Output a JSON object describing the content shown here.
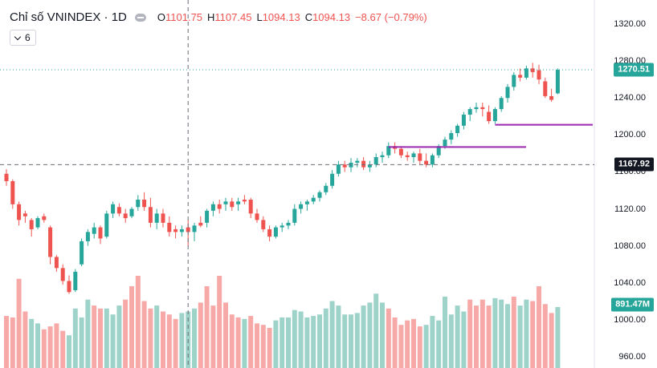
{
  "legend": {
    "title": "Chỉ số VNINDEX · 1D",
    "o_label": "O",
    "o_value": "1101.75",
    "h_label": "H",
    "h_value": "1107.45",
    "l_label": "L",
    "l_value": "1094.13",
    "c_label": "C",
    "c_value": "1094.13",
    "change": "−8.67 (−0.79%)",
    "sub_button": "6"
  },
  "tags": {
    "price": "1270.51",
    "crosshair": "1167.92",
    "volume": "891.47M"
  },
  "colors": {
    "up": "#26a69a",
    "down": "#ef5350",
    "vol_up": "#9ed3ca",
    "vol_down": "#f7a9a7",
    "level_line": "#9c27b0",
    "tag_dark": "#131722"
  },
  "chart_data": {
    "type": "candlestick",
    "title": "Chỉ số VNINDEX · 1D",
    "y_ticks": [
      "1320.00",
      "1280.00",
      "1240.00",
      "1200.00",
      "1160.00",
      "1120.00",
      "1080.00",
      "1040.00",
      "1000.00",
      "960.00"
    ],
    "ylim": [
      960,
      1320
    ],
    "candles": [
      [
        1158,
        1163,
        1145,
        1150
      ],
      [
        1150,
        1152,
        1120,
        1125
      ],
      [
        1125,
        1128,
        1102,
        1108
      ],
      [
        1115,
        1118,
        1105,
        1112
      ],
      [
        1108,
        1110,
        1090,
        1098
      ],
      [
        1100,
        1112,
        1098,
        1110
      ],
      [
        1112,
        1115,
        1105,
        1108
      ],
      [
        1100,
        1102,
        1060,
        1068
      ],
      [
        1068,
        1070,
        1052,
        1056
      ],
      [
        1056,
        1060,
        1038,
        1042
      ],
      [
        1042,
        1048,
        1028,
        1030
      ],
      [
        1032,
        1055,
        1030,
        1052
      ],
      [
        1060,
        1088,
        1058,
        1085
      ],
      [
        1085,
        1098,
        1080,
        1095
      ],
      [
        1093,
        1105,
        1088,
        1100
      ],
      [
        1100,
        1102,
        1082,
        1088
      ],
      [
        1090,
        1118,
        1088,
        1115
      ],
      [
        1115,
        1128,
        1110,
        1125
      ],
      [
        1122,
        1126,
        1112,
        1115
      ],
      [
        1115,
        1120,
        1105,
        1110
      ],
      [
        1112,
        1122,
        1110,
        1120
      ],
      [
        1122,
        1135,
        1118,
        1130
      ],
      [
        1130,
        1138,
        1118,
        1122
      ],
      [
        1122,
        1132,
        1100,
        1105
      ],
      [
        1105,
        1120,
        1098,
        1115
      ],
      [
        1115,
        1120,
        1100,
        1105
      ],
      [
        1105,
        1112,
        1090,
        1095
      ],
      [
        1098,
        1102,
        1088,
        1095
      ],
      [
        1095,
        1102,
        1090,
        1098
      ],
      [
        1100,
        1108,
        1080,
        1095
      ],
      [
        1095,
        1105,
        1085,
        1102
      ],
      [
        1105,
        1112,
        1100,
        1102
      ],
      [
        1105,
        1120,
        1100,
        1118
      ],
      [
        1118,
        1128,
        1112,
        1125
      ],
      [
        1125,
        1130,
        1115,
        1120
      ],
      [
        1125,
        1132,
        1118,
        1128
      ],
      [
        1128,
        1132,
        1118,
        1122
      ],
      [
        1125,
        1132,
        1118,
        1128
      ],
      [
        1130,
        1135,
        1125,
        1128
      ],
      [
        1130,
        1132,
        1110,
        1115
      ],
      [
        1115,
        1120,
        1105,
        1108
      ],
      [
        1108,
        1112,
        1095,
        1098
      ],
      [
        1098,
        1102,
        1085,
        1090
      ],
      [
        1090,
        1102,
        1088,
        1100
      ],
      [
        1100,
        1105,
        1095,
        1102
      ],
      [
        1102,
        1108,
        1098,
        1105
      ],
      [
        1105,
        1125,
        1102,
        1120
      ],
      [
        1120,
        1128,
        1115,
        1125
      ],
      [
        1125,
        1130,
        1118,
        1128
      ],
      [
        1128,
        1135,
        1125,
        1132
      ],
      [
        1132,
        1140,
        1128,
        1138
      ],
      [
        1138,
        1148,
        1135,
        1145
      ],
      [
        1145,
        1162,
        1142,
        1158
      ],
      [
        1158,
        1172,
        1155,
        1168
      ],
      [
        1168,
        1172,
        1160,
        1165
      ],
      [
        1165,
        1175,
        1160,
        1170
      ],
      [
        1170,
        1175,
        1165,
        1172
      ],
      [
        1172,
        1176,
        1162,
        1165
      ],
      [
        1165,
        1172,
        1160,
        1168
      ],
      [
        1168,
        1180,
        1165,
        1176
      ],
      [
        1176,
        1182,
        1170,
        1178
      ],
      [
        1178,
        1192,
        1175,
        1188
      ],
      [
        1188,
        1192,
        1180,
        1185
      ],
      [
        1185,
        1188,
        1175,
        1178
      ],
      [
        1178,
        1182,
        1172,
        1176
      ],
      [
        1176,
        1182,
        1170,
        1180
      ],
      [
        1180,
        1185,
        1168,
        1172
      ],
      [
        1172,
        1180,
        1165,
        1168
      ],
      [
        1168,
        1180,
        1165,
        1178
      ],
      [
        1178,
        1190,
        1175,
        1188
      ],
      [
        1188,
        1198,
        1185,
        1195
      ],
      [
        1195,
        1205,
        1190,
        1202
      ],
      [
        1202,
        1212,
        1198,
        1210
      ],
      [
        1210,
        1225,
        1206,
        1222
      ],
      [
        1222,
        1230,
        1215,
        1228
      ],
      [
        1228,
        1235,
        1224,
        1230
      ],
      [
        1230,
        1235,
        1220,
        1228
      ],
      [
        1225,
        1232,
        1212,
        1215
      ],
      [
        1215,
        1230,
        1212,
        1228
      ],
      [
        1228,
        1242,
        1225,
        1240
      ],
      [
        1240,
        1255,
        1235,
        1252
      ],
      [
        1252,
        1268,
        1248,
        1265
      ],
      [
        1265,
        1272,
        1258,
        1262
      ],
      [
        1262,
        1275,
        1260,
        1272
      ],
      [
        1272,
        1278,
        1262,
        1268
      ],
      [
        1270,
        1276,
        1255,
        1260
      ],
      [
        1258,
        1262,
        1240,
        1242
      ],
      [
        1242,
        1250,
        1236,
        1238
      ],
      [
        1245,
        1272,
        1244,
        1270.51
      ]
    ],
    "volumes": [
      [
        0.35,
        "d"
      ],
      [
        0.34,
        "d"
      ],
      [
        0.6,
        "d"
      ],
      [
        0.38,
        "d"
      ],
      [
        0.33,
        "u"
      ],
      [
        0.3,
        "u"
      ],
      [
        0.26,
        "d"
      ],
      [
        0.28,
        "d"
      ],
      [
        0.3,
        "d"
      ],
      [
        0.25,
        "d"
      ],
      [
        0.22,
        "u"
      ],
      [
        0.4,
        "u"
      ],
      [
        0.34,
        "u"
      ],
      [
        0.46,
        "u"
      ],
      [
        0.42,
        "d"
      ],
      [
        0.4,
        "d"
      ],
      [
        0.4,
        "u"
      ],
      [
        0.36,
        "u"
      ],
      [
        0.42,
        "u"
      ],
      [
        0.46,
        "d"
      ],
      [
        0.55,
        "d"
      ],
      [
        0.62,
        "d"
      ],
      [
        0.45,
        "d"
      ],
      [
        0.4,
        "d"
      ],
      [
        0.42,
        "u"
      ],
      [
        0.38,
        "d"
      ],
      [
        0.36,
        "d"
      ],
      [
        0.33,
        "d"
      ],
      [
        0.37,
        "u"
      ],
      [
        0.38,
        "u"
      ],
      [
        0.4,
        "u"
      ],
      [
        0.44,
        "d"
      ],
      [
        0.55,
        "d"
      ],
      [
        0.42,
        "d"
      ],
      [
        0.62,
        "d"
      ],
      [
        0.44,
        "d"
      ],
      [
        0.36,
        "d"
      ],
      [
        0.34,
        "d"
      ],
      [
        0.33,
        "u"
      ],
      [
        0.35,
        "d"
      ],
      [
        0.3,
        "d"
      ],
      [
        0.29,
        "d"
      ],
      [
        0.27,
        "d"
      ],
      [
        0.32,
        "u"
      ],
      [
        0.34,
        "u"
      ],
      [
        0.34,
        "u"
      ],
      [
        0.39,
        "u"
      ],
      [
        0.38,
        "u"
      ],
      [
        0.34,
        "u"
      ],
      [
        0.35,
        "u"
      ],
      [
        0.36,
        "u"
      ],
      [
        0.4,
        "u"
      ],
      [
        0.45,
        "u"
      ],
      [
        0.42,
        "u"
      ],
      [
        0.36,
        "u"
      ],
      [
        0.36,
        "u"
      ],
      [
        0.37,
        "u"
      ],
      [
        0.42,
        "u"
      ],
      [
        0.44,
        "u"
      ],
      [
        0.5,
        "u"
      ],
      [
        0.44,
        "u"
      ],
      [
        0.4,
        "d"
      ],
      [
        0.34,
        "d"
      ],
      [
        0.29,
        "d"
      ],
      [
        0.32,
        "d"
      ],
      [
        0.33,
        "d"
      ],
      [
        0.28,
        "d"
      ],
      [
        0.29,
        "u"
      ],
      [
        0.35,
        "u"
      ],
      [
        0.32,
        "u"
      ],
      [
        0.48,
        "u"
      ],
      [
        0.36,
        "u"
      ],
      [
        0.42,
        "u"
      ],
      [
        0.38,
        "u"
      ],
      [
        0.46,
        "d"
      ],
      [
        0.42,
        "d"
      ],
      [
        0.46,
        "d"
      ],
      [
        0.42,
        "d"
      ],
      [
        0.47,
        "u"
      ],
      [
        0.46,
        "u"
      ],
      [
        0.43,
        "u"
      ],
      [
        0.48,
        "d"
      ],
      [
        0.42,
        "u"
      ],
      [
        0.46,
        "u"
      ],
      [
        0.45,
        "d"
      ],
      [
        0.55,
        "d"
      ],
      [
        0.43,
        "d"
      ],
      [
        0.37,
        "d"
      ],
      [
        0.41,
        "u"
      ]
    ],
    "levels": [
      {
        "price": 1211,
        "start": 78
      },
      {
        "price": 1187,
        "start": 61
      }
    ],
    "crosshair": {
      "price": 1167.92,
      "index": 29
    }
  }
}
